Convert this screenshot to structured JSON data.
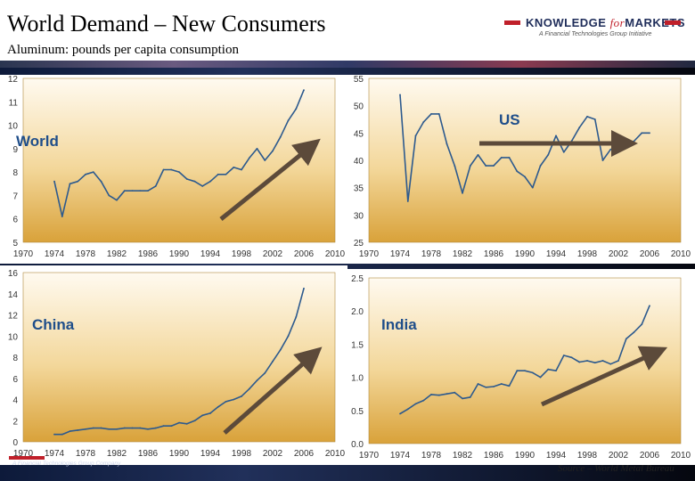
{
  "header": {
    "title": "World Demand – New Consumers",
    "subtitle": "Aluminum: pounds per capita consumption"
  },
  "logo": {
    "name_prefix": "KNOWLEDGE ",
    "name_italic": "for",
    "name_suffix": "MARKETS",
    "tagline": "A Financial Technologies Group Initiative"
  },
  "footer": {
    "company": "A Financial Technologies Group Company",
    "source": "Source – World Metal Bureau"
  },
  "colors": {
    "line": "#2d5a8e",
    "arrow": "#5c4a3a",
    "label": "#1f4e8a",
    "panel_top": "#fffaf0",
    "panel_bottom": "#d9a23a",
    "accent": "#c0202a"
  },
  "chart_data": [
    {
      "type": "line",
      "label": "World",
      "xlim": [
        1970,
        2010
      ],
      "ylim": [
        5,
        12
      ],
      "xticks": [
        "1970",
        "1974",
        "1978",
        "1982",
        "1986",
        "1990",
        "1994",
        "1998",
        "2002",
        "2006",
        "2010"
      ],
      "yticks": [
        "5",
        "6",
        "7",
        "8",
        "9",
        "10",
        "11",
        "12"
      ],
      "x": [
        1974,
        1975,
        1976,
        1977,
        1978,
        1979,
        1980,
        1981,
        1982,
        1983,
        1984,
        1985,
        1986,
        1987,
        1988,
        1989,
        1990,
        1991,
        1992,
        1993,
        1994,
        1995,
        1996,
        1997,
        1998,
        1999,
        2000,
        2001,
        2002,
        2003,
        2004,
        2005,
        2006
      ],
      "y": [
        7.6,
        6.1,
        7.5,
        7.6,
        7.9,
        8.0,
        7.6,
        7.0,
        6.8,
        7.2,
        7.2,
        7.2,
        7.2,
        7.4,
        8.1,
        8.1,
        8.0,
        7.7,
        7.6,
        7.4,
        7.6,
        7.9,
        7.9,
        8.2,
        8.1,
        8.6,
        9.0,
        8.5,
        8.9,
        9.5,
        10.2,
        10.7,
        11.5
      ],
      "trend": "up"
    },
    {
      "type": "line",
      "label": "US",
      "xlim": [
        1970,
        2010
      ],
      "ylim": [
        25,
        55
      ],
      "xticks": [
        "1970",
        "1974",
        "1978",
        "1982",
        "1986",
        "1990",
        "1994",
        "1998",
        "2002",
        "2006",
        "2010"
      ],
      "yticks": [
        "25",
        "30",
        "35",
        "40",
        "45",
        "50",
        "55"
      ],
      "x": [
        1974,
        1975,
        1976,
        1977,
        1978,
        1979,
        1980,
        1981,
        1982,
        1983,
        1984,
        1985,
        1986,
        1987,
        1988,
        1989,
        1990,
        1991,
        1992,
        1993,
        1994,
        1995,
        1996,
        1997,
        1998,
        1999,
        2000,
        2001,
        2002,
        2003,
        2004,
        2005,
        2006
      ],
      "y": [
        52,
        32.5,
        44.5,
        47,
        48.5,
        48.5,
        43,
        39,
        34,
        39,
        41,
        39,
        39,
        40.5,
        40.5,
        38,
        37,
        35,
        39,
        41,
        44.5,
        41.5,
        43.5,
        46,
        48,
        47.5,
        40,
        42,
        42.5,
        43,
        43.5,
        45,
        45
      ],
      "trend": "flat"
    },
    {
      "type": "line",
      "label": "China",
      "xlim": [
        1970,
        2010
      ],
      "ylim": [
        0,
        16
      ],
      "xticks": [
        "1970",
        "1974",
        "1978",
        "1982",
        "1986",
        "1990",
        "1994",
        "1998",
        "2002",
        "2006",
        "2010"
      ],
      "yticks": [
        "0",
        "2",
        "4",
        "6",
        "8",
        "10",
        "12",
        "14",
        "16"
      ],
      "x": [
        1974,
        1975,
        1976,
        1977,
        1978,
        1979,
        1980,
        1981,
        1982,
        1983,
        1984,
        1985,
        1986,
        1987,
        1988,
        1989,
        1990,
        1991,
        1992,
        1993,
        1994,
        1995,
        1996,
        1997,
        1998,
        1999,
        2000,
        2001,
        2002,
        2003,
        2004,
        2005,
        2006
      ],
      "y": [
        0.7,
        0.7,
        1.0,
        1.1,
        1.2,
        1.3,
        1.3,
        1.2,
        1.2,
        1.3,
        1.3,
        1.3,
        1.2,
        1.3,
        1.5,
        1.5,
        1.8,
        1.7,
        2.0,
        2.5,
        2.7,
        3.3,
        3.8,
        4.0,
        4.3,
        5.0,
        5.8,
        6.5,
        7.6,
        8.7,
        10.0,
        11.8,
        14.5
      ],
      "trend": "up"
    },
    {
      "type": "line",
      "label": "India",
      "xlim": [
        1970,
        2010
      ],
      "ylim": [
        0.0,
        2.5
      ],
      "xticks": [
        "1970",
        "1974",
        "1978",
        "1982",
        "1986",
        "1990",
        "1994",
        "1998",
        "2002",
        "2006",
        "2010"
      ],
      "yticks": [
        "0.0",
        "0.5",
        "1.0",
        "1.5",
        "2.0",
        "2.5"
      ],
      "x": [
        1974,
        1975,
        1976,
        1977,
        1978,
        1979,
        1980,
        1981,
        1982,
        1983,
        1984,
        1985,
        1986,
        1987,
        1988,
        1989,
        1990,
        1991,
        1992,
        1993,
        1994,
        1995,
        1996,
        1997,
        1998,
        1999,
        2000,
        2001,
        2002,
        2003,
        2004,
        2005,
        2006
      ],
      "y": [
        0.45,
        0.52,
        0.6,
        0.65,
        0.74,
        0.73,
        0.75,
        0.77,
        0.68,
        0.7,
        0.9,
        0.85,
        0.86,
        0.9,
        0.87,
        1.1,
        1.1,
        1.07,
        1.0,
        1.12,
        1.1,
        1.33,
        1.3,
        1.23,
        1.25,
        1.22,
        1.25,
        1.2,
        1.25,
        1.58,
        1.68,
        1.8,
        2.08
      ],
      "trend": "up"
    }
  ]
}
